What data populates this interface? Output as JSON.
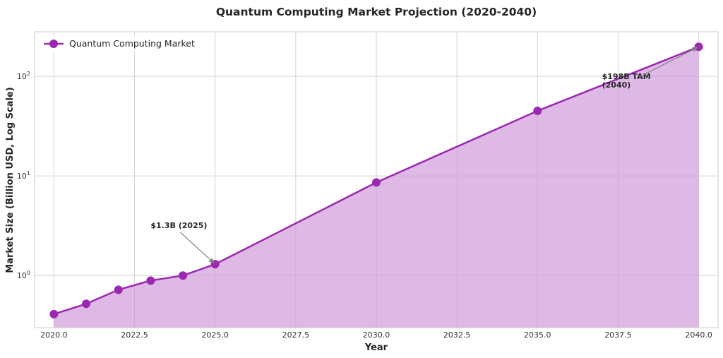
{
  "chart_data": {
    "type": "line",
    "title": "Quantum Computing Market Projection (2020-2040)",
    "xlabel": "Year",
    "ylabel": "Market Size (Billion USD, Log Scale)",
    "yscale": "log",
    "xlim": [
      2019.4,
      2040.6
    ],
    "ylim": [
      0.3,
      280
    ],
    "x_ticks": [
      2020.0,
      2022.5,
      2025.0,
      2027.5,
      2030.0,
      2032.5,
      2035.0,
      2037.5,
      2040.0
    ],
    "x_tick_labels": [
      "2020.0",
      "2022.5",
      "2025.0",
      "2027.5",
      "2030.0",
      "2032.5",
      "2035.0",
      "2037.5",
      "2040.0"
    ],
    "y_ticks": [
      1,
      10,
      100
    ],
    "y_tick_labels": [
      {
        "base": "10",
        "exp": "0"
      },
      {
        "base": "10",
        "exp": "1"
      },
      {
        "base": "10",
        "exp": "2"
      }
    ],
    "grid": true,
    "legend_position": "top-left",
    "series": [
      {
        "name": "Quantum Computing Market",
        "color": "#9c27b0",
        "fill_color": "#ce93d8",
        "x": [
          2020,
          2021,
          2022,
          2023,
          2024,
          2025,
          2030,
          2035,
          2040
        ],
        "values": [
          0.41,
          0.52,
          0.72,
          0.89,
          1.0,
          1.3,
          8.6,
          45,
          198
        ]
      }
    ],
    "annotations": [
      {
        "text_lines": [
          "$1.3B (2025)"
        ],
        "point": [
          2025,
          1.3
        ],
        "text_at": [
          2023.0,
          3.0
        ]
      },
      {
        "text_lines": [
          "$198B TAM",
          "(2040)"
        ],
        "point": [
          2040,
          198
        ],
        "text_at": [
          2037.0,
          94
        ]
      }
    ]
  }
}
